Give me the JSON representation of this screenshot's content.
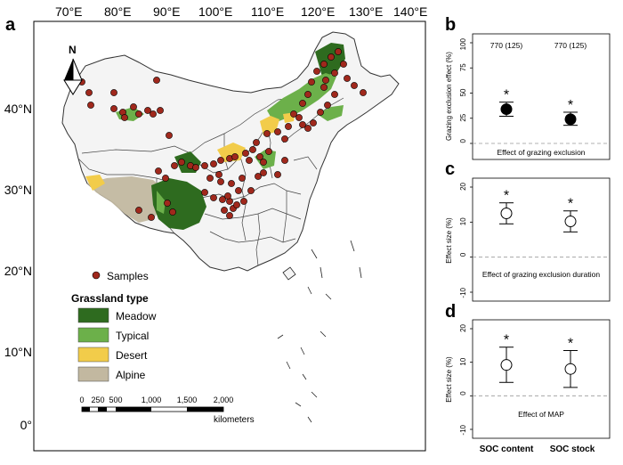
{
  "map": {
    "panel_label": "a",
    "lon_ticks": [
      "70°E",
      "80°E",
      "90°E",
      "100°E",
      "110°E",
      "120°E",
      "130°E",
      "140°E"
    ],
    "lat_ticks": [
      "40°N",
      "30°N",
      "20°N",
      "10°N",
      "0°"
    ],
    "north_label": "N",
    "samples_label": "Samples",
    "legend_title": "Grassland type",
    "legend_items": [
      {
        "label": "Meadow",
        "color": "#2e6b1f"
      },
      {
        "label": "Typical",
        "color": "#6cb04a"
      },
      {
        "label": "Desert",
        "color": "#f2cc4a"
      },
      {
        "label": "Alpine",
        "color": "#c2b8a0"
      }
    ],
    "scale_ticks": [
      "0",
      "250",
      "500",
      "1,000",
      "1,500",
      "2,000"
    ],
    "scale_unit": "kilometers",
    "sample_color": "#a0281c"
  },
  "chart_data": [
    {
      "panel_label": "b",
      "type": "scatter",
      "title": "Effect of grazing exclusion",
      "ylabel": "Grazing exclusion effect (%)",
      "ylim": [
        0,
        100
      ],
      "yticks": [
        "0",
        "25",
        "50",
        "75",
        "100"
      ],
      "categories": [
        "SOC content",
        "SOC stock"
      ],
      "values": [
        34,
        24
      ],
      "ci_lower": [
        27,
        18
      ],
      "ci_upper": [
        41,
        31
      ],
      "sample_sizes": [
        "770 (125)",
        "770 (125)"
      ],
      "significance": [
        "*",
        "*"
      ],
      "marker": "filled"
    },
    {
      "panel_label": "c",
      "type": "scatter",
      "title": "Effect of grazing exclusion duration",
      "ylabel": "Effect size (%)",
      "ylim": [
        -10,
        20
      ],
      "yticks": [
        "-10",
        "0",
        "10",
        "20"
      ],
      "categories": [
        "SOC content",
        "SOC stock"
      ],
      "values": [
        12.5,
        10.2
      ],
      "ci_lower": [
        9.5,
        7.2
      ],
      "ci_upper": [
        15.5,
        13.2
      ],
      "significance": [
        "*",
        "*"
      ],
      "marker": "open"
    },
    {
      "panel_label": "d",
      "type": "scatter",
      "title": "Effect of MAP",
      "ylabel": "Effect size (%)",
      "ylim": [
        -10,
        20
      ],
      "yticks": [
        "-10",
        "0",
        "10",
        "20"
      ],
      "categories": [
        "SOC content",
        "SOC stock"
      ],
      "values": [
        9.2,
        8.0
      ],
      "ci_lower": [
        4.0,
        2.5
      ],
      "ci_upper": [
        14.5,
        13.5
      ],
      "significance": [
        "*",
        "*"
      ],
      "marker": "open"
    }
  ],
  "x_category_labels": [
    "SOC content",
    "SOC stock"
  ]
}
